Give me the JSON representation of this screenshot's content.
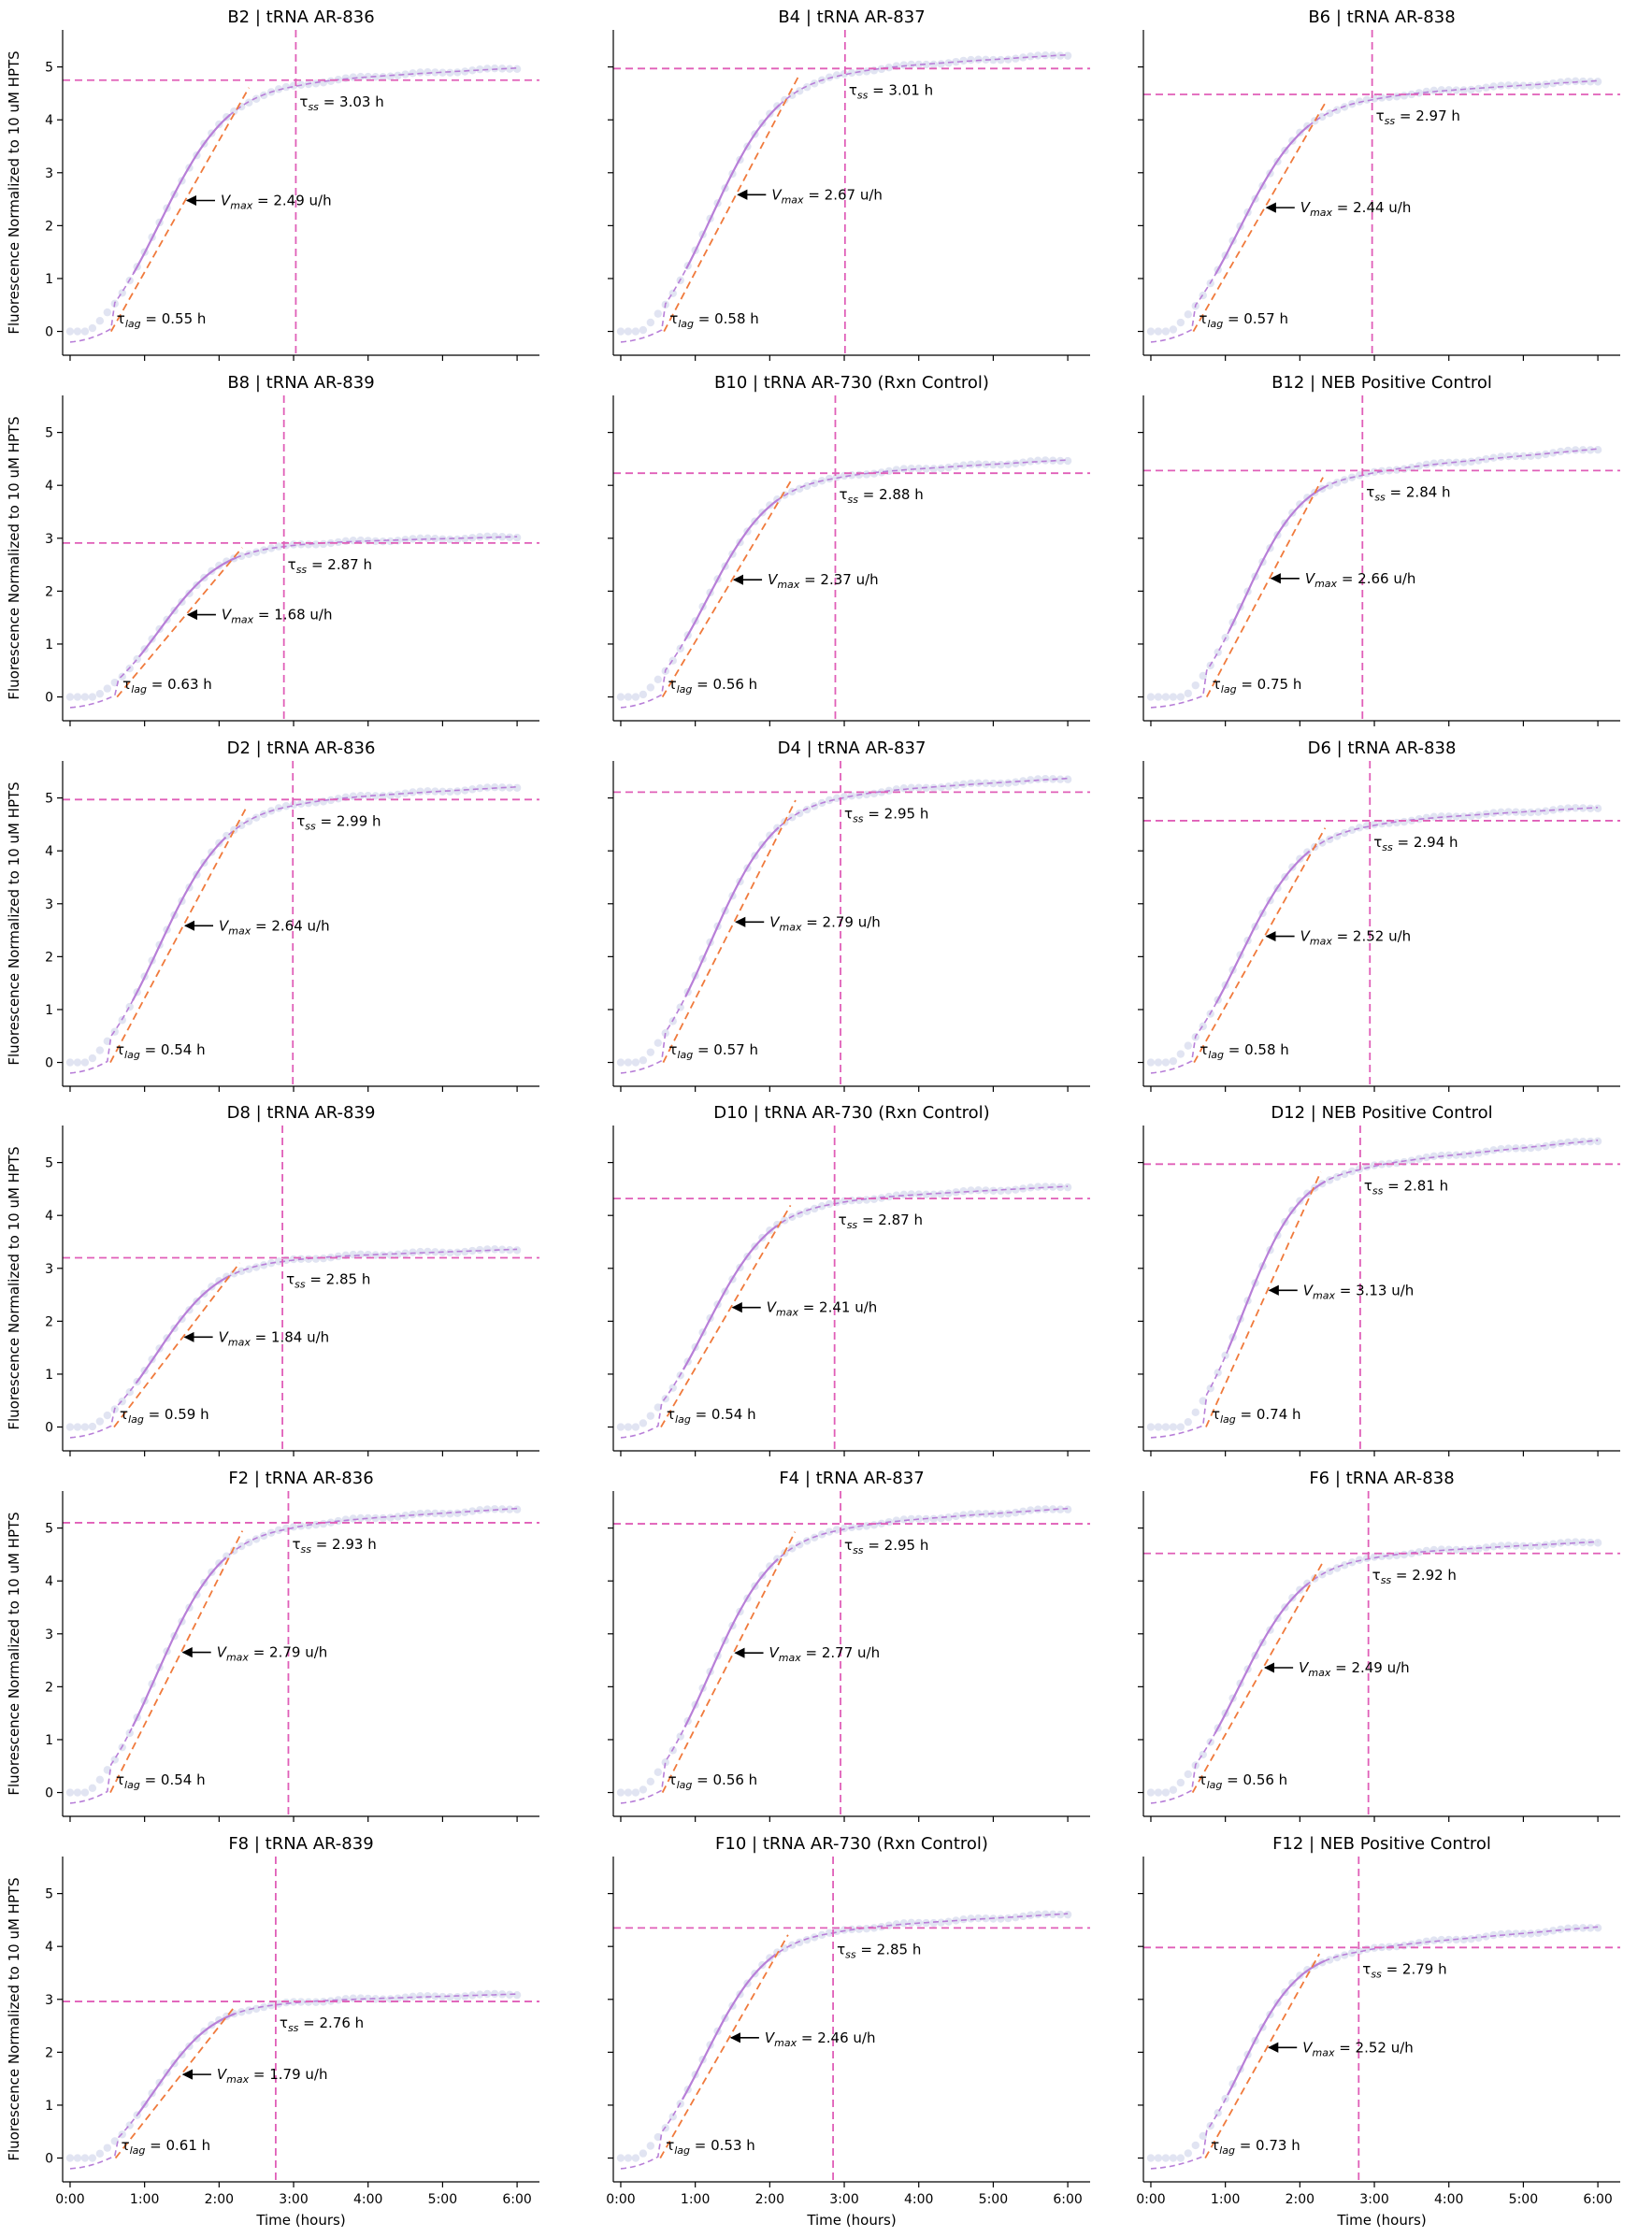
{
  "figure": {
    "xlabel": "Time (hours)",
    "ylabel": "Fluorescence Normalized to 10 uM HPTS",
    "xticks": [
      "0:00",
      "1:00",
      "2:00",
      "3:00",
      "4:00",
      "5:00",
      "6:00"
    ],
    "yticks": [
      "0",
      "1",
      "2",
      "3",
      "4",
      "5"
    ],
    "colors": {
      "data_points": "#dcdff0",
      "fit_curve": "#b87fd8",
      "slope_line": "#f07a3c",
      "reference_lines": "#e05fb8",
      "axes": "#000000"
    }
  },
  "chart_data": [
    {
      "type": "scatter",
      "title": "B2 | tRNA AR-836",
      "xlim": [
        -0.1,
        6.3
      ],
      "ylim": [
        -0.45,
        5.7
      ],
      "tau_lag_h": 0.55,
      "tau_ss_h": 3.03,
      "v_max": 2.49,
      "plateau": 4.75,
      "final": 4.98,
      "tau_lag_label": "= 0.55 h",
      "tau_ss_label": "= 3.03 h",
      "v_max_label": "= 2.49 u/h"
    },
    {
      "type": "scatter",
      "title": "B4 | tRNA AR-837",
      "xlim": [
        -0.1,
        6.3
      ],
      "ylim": [
        -0.45,
        5.7
      ],
      "tau_lag_h": 0.58,
      "tau_ss_h": 3.01,
      "v_max": 2.67,
      "plateau": 4.97,
      "final": 5.23,
      "tau_lag_label": "= 0.58 h",
      "tau_ss_label": "= 3.01 h",
      "v_max_label": "= 2.67 u/h"
    },
    {
      "type": "scatter",
      "title": "B6 | tRNA AR-838",
      "xlim": [
        -0.1,
        6.3
      ],
      "ylim": [
        -0.45,
        5.7
      ],
      "tau_lag_h": 0.57,
      "tau_ss_h": 2.97,
      "v_max": 2.44,
      "plateau": 4.48,
      "final": 4.74,
      "tau_lag_label": "= 0.57 h",
      "tau_ss_label": "= 2.97 h",
      "v_max_label": "= 2.44 u/h"
    },
    {
      "type": "scatter",
      "title": "B8 | tRNA AR-839",
      "xlim": [
        -0.1,
        6.3
      ],
      "ylim": [
        -0.45,
        5.7
      ],
      "tau_lag_h": 0.63,
      "tau_ss_h": 2.87,
      "v_max": 1.68,
      "plateau": 2.91,
      "final": 3.03,
      "tau_lag_label": "= 0.63 h",
      "tau_ss_label": "= 2.87 h",
      "v_max_label": "= 1.68 u/h"
    },
    {
      "type": "scatter",
      "title": "B10 | tRNA AR-730 (Rxn Control)",
      "xlim": [
        -0.1,
        6.3
      ],
      "ylim": [
        -0.45,
        5.7
      ],
      "tau_lag_h": 0.56,
      "tau_ss_h": 2.88,
      "v_max": 2.37,
      "plateau": 4.23,
      "final": 4.48,
      "tau_lag_label": "= 0.56 h",
      "tau_ss_label": "= 2.88 h",
      "v_max_label": "= 2.37 u/h"
    },
    {
      "type": "scatter",
      "title": "B12 | NEB Positive Control",
      "xlim": [
        -0.1,
        6.3
      ],
      "ylim": [
        -0.45,
        5.7
      ],
      "tau_lag_h": 0.75,
      "tau_ss_h": 2.84,
      "v_max": 2.66,
      "plateau": 4.28,
      "final": 4.69,
      "tau_lag_label": "= 0.75 h",
      "tau_ss_label": "= 2.84 h",
      "v_max_label": "= 2.66 u/h"
    },
    {
      "type": "scatter",
      "title": "D2 | tRNA AR-836",
      "xlim": [
        -0.1,
        6.3
      ],
      "ylim": [
        -0.45,
        5.7
      ],
      "tau_lag_h": 0.54,
      "tau_ss_h": 2.99,
      "v_max": 2.64,
      "plateau": 4.97,
      "final": 5.21,
      "tau_lag_label": "= 0.54 h",
      "tau_ss_label": "= 2.99 h",
      "v_max_label": "= 2.64 u/h"
    },
    {
      "type": "scatter",
      "title": "D4 | tRNA AR-837",
      "xlim": [
        -0.1,
        6.3
      ],
      "ylim": [
        -0.45,
        5.7
      ],
      "tau_lag_h": 0.57,
      "tau_ss_h": 2.95,
      "v_max": 2.79,
      "plateau": 5.11,
      "final": 5.37,
      "tau_lag_label": "= 0.57 h",
      "tau_ss_label": "= 2.95 h",
      "v_max_label": "= 2.79 u/h"
    },
    {
      "type": "scatter",
      "title": "D6 | tRNA AR-838",
      "xlim": [
        -0.1,
        6.3
      ],
      "ylim": [
        -0.45,
        5.7
      ],
      "tau_lag_h": 0.58,
      "tau_ss_h": 2.94,
      "v_max": 2.52,
      "plateau": 4.57,
      "final": 4.82,
      "tau_lag_label": "= 0.58 h",
      "tau_ss_label": "= 2.94 h",
      "v_max_label": "= 2.52 u/h"
    },
    {
      "type": "scatter",
      "title": "D8 | tRNA AR-839",
      "xlim": [
        -0.1,
        6.3
      ],
      "ylim": [
        -0.45,
        5.7
      ],
      "tau_lag_h": 0.59,
      "tau_ss_h": 2.85,
      "v_max": 1.84,
      "plateau": 3.2,
      "final": 3.36,
      "tau_lag_label": "= 0.59 h",
      "tau_ss_label": "= 2.85 h",
      "v_max_label": "= 1.84 u/h"
    },
    {
      "type": "scatter",
      "title": "D10 | tRNA AR-730 (Rxn Control)",
      "xlim": [
        -0.1,
        6.3
      ],
      "ylim": [
        -0.45,
        5.7
      ],
      "tau_lag_h": 0.54,
      "tau_ss_h": 2.87,
      "v_max": 2.41,
      "plateau": 4.32,
      "final": 4.55,
      "tau_lag_label": "= 0.54 h",
      "tau_ss_label": "= 2.87 h",
      "v_max_label": "= 2.41 u/h"
    },
    {
      "type": "scatter",
      "title": "D12 | NEB Positive Control",
      "xlim": [
        -0.1,
        6.3
      ],
      "ylim": [
        -0.45,
        5.7
      ],
      "tau_lag_h": 0.74,
      "tau_ss_h": 2.81,
      "v_max": 3.13,
      "plateau": 4.97,
      "final": 5.42,
      "tau_lag_label": "= 0.74 h",
      "tau_ss_label": "= 2.81 h",
      "v_max_label": "= 3.13 u/h"
    },
    {
      "type": "scatter",
      "title": "F2 | tRNA AR-836",
      "xlim": [
        -0.1,
        6.3
      ],
      "ylim": [
        -0.45,
        5.7
      ],
      "tau_lag_h": 0.54,
      "tau_ss_h": 2.93,
      "v_max": 2.79,
      "plateau": 5.1,
      "final": 5.37,
      "tau_lag_label": "= 0.54 h",
      "tau_ss_label": "= 2.93 h",
      "v_max_label": "= 2.79 u/h"
    },
    {
      "type": "scatter",
      "title": "F4 | tRNA AR-837",
      "xlim": [
        -0.1,
        6.3
      ],
      "ylim": [
        -0.45,
        5.7
      ],
      "tau_lag_h": 0.56,
      "tau_ss_h": 2.95,
      "v_max": 2.77,
      "plateau": 5.08,
      "final": 5.37,
      "tau_lag_label": "= 0.56 h",
      "tau_ss_label": "= 2.95 h",
      "v_max_label": "= 2.77 u/h"
    },
    {
      "type": "scatter",
      "title": "F6 | tRNA AR-838",
      "xlim": [
        -0.1,
        6.3
      ],
      "ylim": [
        -0.45,
        5.7
      ],
      "tau_lag_h": 0.56,
      "tau_ss_h": 2.92,
      "v_max": 2.49,
      "plateau": 4.52,
      "final": 4.74,
      "tau_lag_label": "= 0.56 h",
      "tau_ss_label": "= 2.92 h",
      "v_max_label": "= 2.49 u/h"
    },
    {
      "type": "scatter",
      "title": "F8 | tRNA AR-839",
      "xlim": [
        -0.1,
        6.3
      ],
      "ylim": [
        -0.45,
        5.7
      ],
      "tau_lag_h": 0.61,
      "tau_ss_h": 2.76,
      "v_max": 1.79,
      "plateau": 2.96,
      "final": 3.1,
      "tau_lag_label": "= 0.61 h",
      "tau_ss_label": "= 2.76 h",
      "v_max_label": "= 1.79 u/h"
    },
    {
      "type": "scatter",
      "title": "F10 | tRNA AR-730 (Rxn Control)",
      "xlim": [
        -0.1,
        6.3
      ],
      "ylim": [
        -0.45,
        5.7
      ],
      "tau_lag_h": 0.53,
      "tau_ss_h": 2.85,
      "v_max": 2.46,
      "plateau": 4.35,
      "final": 4.62,
      "tau_lag_label": "= 0.53 h",
      "tau_ss_label": "= 2.85 h",
      "v_max_label": "= 2.46 u/h"
    },
    {
      "type": "scatter",
      "title": "F12 | NEB Positive Control",
      "xlim": [
        -0.1,
        6.3
      ],
      "ylim": [
        -0.45,
        5.7
      ],
      "tau_lag_h": 0.73,
      "tau_ss_h": 2.79,
      "v_max": 2.52,
      "plateau": 3.98,
      "final": 4.37,
      "tau_lag_label": "= 0.73 h",
      "tau_ss_label": "= 2.79 h",
      "v_max_label": "= 2.52 u/h"
    }
  ]
}
